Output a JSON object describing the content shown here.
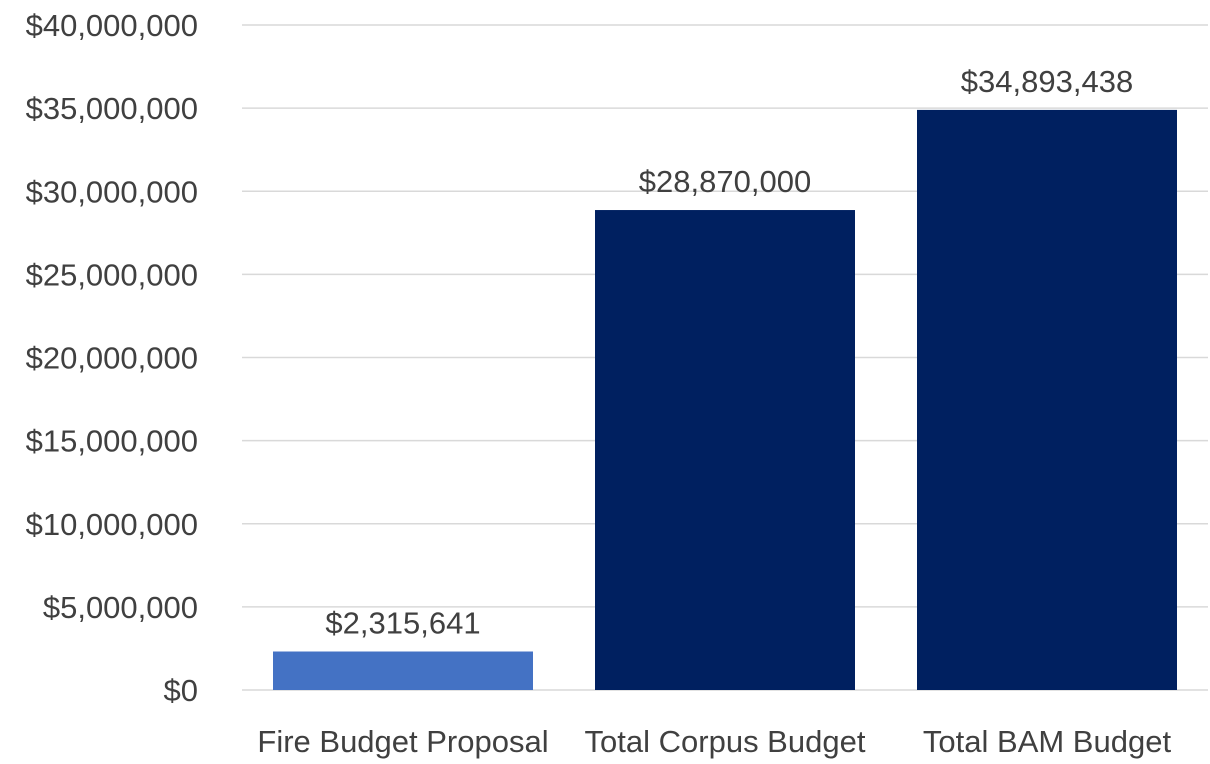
{
  "chart_data": {
    "type": "bar",
    "categories": [
      "Fire Budget Proposal",
      "Total Corpus Budget",
      "Total BAM Budget"
    ],
    "values": [
      2315641,
      28870000,
      34893438
    ],
    "data_labels": [
      "$2,315,641",
      "$28,870,000",
      "$34,893,438"
    ],
    "bar_colors": [
      "#4472c4",
      "#002060",
      "#002060"
    ],
    "title": "",
    "xlabel": "",
    "ylabel": "",
    "ylim": [
      0,
      40000000
    ],
    "y_ticks": [
      0,
      5000000,
      10000000,
      15000000,
      20000000,
      25000000,
      30000000,
      35000000,
      40000000
    ],
    "y_tick_labels": [
      "$0",
      "$5,000,000",
      "$10,000,000",
      "$15,000,000",
      "$20,000,000",
      "$25,000,000",
      "$30,000,000",
      "$35,000,000",
      "$40,000,000"
    ],
    "grid": true,
    "legend": "none",
    "gridline_color": "#d9d9d9",
    "text_color": "#404040"
  }
}
